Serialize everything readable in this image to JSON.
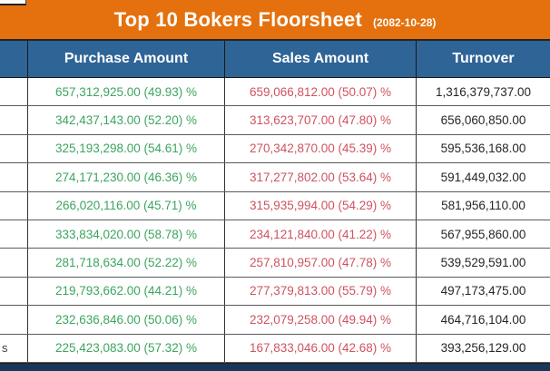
{
  "title": {
    "text": "Top 10 Bokers Floorsheet",
    "date": "(2082-10-28)"
  },
  "header": {
    "broker": "",
    "purchase": "Purchase Amount",
    "sales": "Sales Amount",
    "turnover": "Turnover"
  },
  "colors": {
    "banner_orange": "#E4710D",
    "header_blue": "#2F6496",
    "purchase_green": "#3CA55F",
    "sales_red": "#CE5360",
    "footer_navy": "#19365B"
  },
  "table": {
    "rows": [
      {
        "broker": "",
        "purchase": "657,312,925.00 (49.93) %",
        "sales": "659,066,812.00 (50.07) %",
        "turnover": "1,316,379,737.00"
      },
      {
        "broker": "",
        "purchase": "342,437,143.00 (52.20) %",
        "sales": "313,623,707.00 (47.80) %",
        "turnover": "656,060,850.00"
      },
      {
        "broker": "",
        "purchase": "325,193,298.00 (54.61) %",
        "sales": "270,342,870.00 (45.39) %",
        "turnover": "595,536,168.00"
      },
      {
        "broker": "",
        "purchase": "274,171,230.00 (46.36) %",
        "sales": "317,277,802.00 (53.64) %",
        "turnover": "591,449,032.00"
      },
      {
        "broker": "",
        "purchase": "266,020,116.00 (45.71) %",
        "sales": "315,935,994.00 (54.29) %",
        "turnover": "581,956,110.00"
      },
      {
        "broker": "",
        "purchase": "333,834,020.00 (58.78) %",
        "sales": "234,121,840.00 (41.22) %",
        "turnover": "567,955,860.00"
      },
      {
        "broker": "",
        "purchase": "281,718,634.00 (52.22) %",
        "sales": "257,810,957.00 (47.78) %",
        "turnover": "539,529,591.00"
      },
      {
        "broker": "",
        "purchase": "219,793,662.00 (44.21) %",
        "sales": "277,379,813.00 (55.79) %",
        "turnover": "497,173,475.00"
      },
      {
        "broker": "",
        "purchase": "232,636,846.00 (50.06) %",
        "sales": "232,079,258.00 (49.94) %",
        "turnover": "464,716,104.00"
      },
      {
        "broker": "s",
        "purchase": "225,423,083.00 (57.32) %",
        "sales": "167,833,046.00 (42.68) %",
        "turnover": "393,256,129.00"
      }
    ]
  }
}
